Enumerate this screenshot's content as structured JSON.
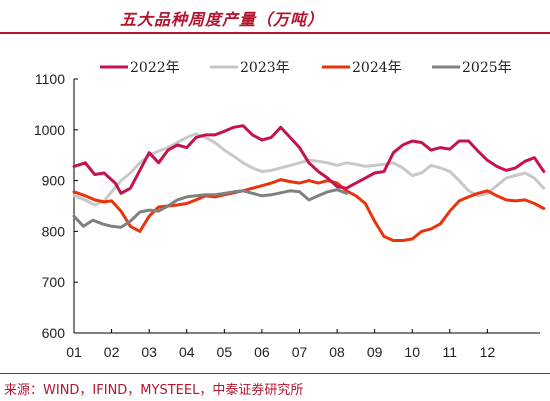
{
  "title": "五大品种周度产量（万吨）",
  "source": "来源：WIND，IFIND，MYSTEEL，中泰证券研究所",
  "chart_data": {
    "type": "line",
    "title": "五大品种周度产量（万吨）",
    "xlabel": "",
    "ylabel": "",
    "ylim": [
      600,
      1100
    ],
    "yticks": [
      "600",
      "700",
      "800",
      "900",
      "1000",
      "1100"
    ],
    "xticks": [
      "01",
      "02",
      "03",
      "04",
      "05",
      "06",
      "07",
      "08",
      "09",
      "10",
      "11",
      "12"
    ],
    "grid": false,
    "legend_position": "top",
    "series": [
      {
        "name": "2022年",
        "color": "#c4144a",
        "x": [
          0.0,
          0.3,
          0.55,
          0.8,
          1.1,
          1.25,
          1.5,
          1.75,
          2.0,
          2.25,
          2.5,
          2.75,
          3.0,
          3.25,
          3.5,
          3.75,
          4.0,
          4.25,
          4.5,
          4.75,
          5.0,
          5.25,
          5.5,
          5.75,
          6.0,
          6.25,
          6.5,
          6.75,
          7.0,
          7.25,
          7.5,
          7.75,
          8.0,
          8.25,
          8.5,
          8.75,
          9.0,
          9.25,
          9.5,
          9.75,
          10.0,
          10.25,
          10.5,
          10.75,
          11.0,
          11.25,
          11.5,
          11.75,
          12.0,
          12.25,
          12.5
        ],
        "values": [
          928,
          935,
          912,
          915,
          895,
          875,
          885,
          920,
          955,
          935,
          960,
          970,
          965,
          985,
          990,
          990,
          997,
          1005,
          1008,
          990,
          980,
          985,
          1005,
          985,
          965,
          935,
          918,
          905,
          888,
          885,
          895,
          905,
          915,
          918,
          955,
          970,
          978,
          975,
          960,
          965,
          962,
          978,
          978,
          958,
          940,
          928,
          920,
          925,
          938,
          945,
          918
        ]
      },
      {
        "name": "2023年",
        "color": "#c8c8c8",
        "x": [
          0.0,
          0.3,
          0.55,
          0.8,
          1.0,
          1.25,
          1.5,
          1.75,
          2.0,
          2.25,
          2.5,
          2.75,
          3.0,
          3.25,
          3.5,
          3.75,
          4.0,
          4.25,
          4.5,
          4.75,
          5.0,
          5.25,
          5.5,
          5.75,
          6.0,
          6.25,
          6.5,
          6.75,
          7.0,
          7.25,
          7.5,
          7.75,
          8.0,
          8.25,
          8.5,
          8.75,
          9.0,
          9.25,
          9.5,
          9.75,
          10.0,
          10.25,
          10.5,
          10.75,
          11.0,
          11.25,
          11.5,
          11.75,
          12.0,
          12.25,
          12.5
        ],
        "values": [
          870,
          862,
          852,
          860,
          878,
          900,
          915,
          935,
          950,
          958,
          965,
          975,
          985,
          992,
          985,
          975,
          960,
          948,
          935,
          925,
          918,
          920,
          925,
          930,
          935,
          940,
          938,
          935,
          930,
          935,
          932,
          928,
          930,
          932,
          935,
          925,
          910,
          915,
          930,
          925,
          918,
          900,
          880,
          870,
          875,
          890,
          905,
          910,
          915,
          905,
          885
        ]
      },
      {
        "name": "2024年",
        "color": "#e8340c",
        "x": [
          0.0,
          0.3,
          0.55,
          0.8,
          1.0,
          1.25,
          1.5,
          1.75,
          2.0,
          2.25,
          2.5,
          2.75,
          3.0,
          3.25,
          3.5,
          3.75,
          4.0,
          4.25,
          4.5,
          4.75,
          5.0,
          5.25,
          5.5,
          5.75,
          6.0,
          6.25,
          6.5,
          6.75,
          7.0,
          7.25,
          7.5,
          7.75,
          8.0,
          8.25,
          8.5,
          8.75,
          9.0,
          9.25,
          9.5,
          9.75,
          10.0,
          10.25,
          10.5,
          10.75,
          11.0,
          11.25,
          11.5,
          11.75,
          12.0,
          12.25,
          12.5
        ],
        "values": [
          878,
          870,
          862,
          858,
          860,
          840,
          810,
          800,
          830,
          848,
          850,
          852,
          855,
          862,
          870,
          868,
          872,
          876,
          880,
          885,
          890,
          895,
          902,
          898,
          895,
          900,
          895,
          900,
          895,
          880,
          870,
          855,
          820,
          790,
          782,
          782,
          785,
          800,
          805,
          815,
          840,
          860,
          868,
          875,
          880,
          870,
          862,
          860,
          862,
          855,
          845
        ]
      },
      {
        "name": "2025年",
        "color": "#808080",
        "x": [
          0.0,
          0.25,
          0.5,
          0.75,
          1.0,
          1.25,
          1.5,
          1.75,
          2.0,
          2.25,
          2.5,
          2.75,
          3.0,
          3.25,
          3.5,
          3.75,
          4.0,
          4.25,
          4.5,
          4.75,
          5.0,
          5.25,
          5.5,
          5.75,
          6.0,
          6.25,
          6.5,
          6.75,
          7.0,
          7.25
        ],
        "values": [
          830,
          810,
          822,
          815,
          810,
          808,
          820,
          838,
          842,
          840,
          850,
          862,
          868,
          870,
          872,
          872,
          875,
          878,
          880,
          875,
          870,
          872,
          876,
          880,
          878,
          862,
          870,
          878,
          882,
          875
        ]
      }
    ]
  }
}
